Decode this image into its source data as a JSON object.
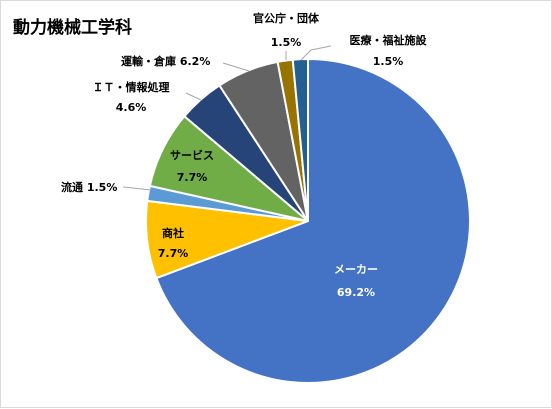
{
  "chart_data": {
    "type": "pie",
    "title": "動力機械工学科",
    "slices": [
      {
        "name": "メーカー",
        "value": 69.2,
        "label": "69.2%",
        "color": "#4472C4"
      },
      {
        "name": "商社",
        "value": 7.7,
        "label": "7.7%",
        "color": "#FFC000"
      },
      {
        "name": "流通",
        "value": 1.5,
        "label": "1.5%",
        "color": "#5B9BD5"
      },
      {
        "name": "サービス",
        "value": 7.7,
        "label": "7.7%",
        "color": "#70AD47"
      },
      {
        "name": "ＩＴ・情報処理",
        "value": 4.6,
        "label": "4.6%",
        "color": "#264478"
      },
      {
        "name": "運輸・倉庫",
        "value": 6.2,
        "label": "6.2%",
        "color": "#636363"
      },
      {
        "name": "官公庁・団体",
        "value": 1.5,
        "label": "1.5%",
        "color": "#997300"
      },
      {
        "name": "医療・福祉施設",
        "value": 1.5,
        "label": "1.5%",
        "color": "#255E91"
      }
    ],
    "start": "12 o'clock",
    "direction": "clockwise",
    "legend": "none"
  }
}
